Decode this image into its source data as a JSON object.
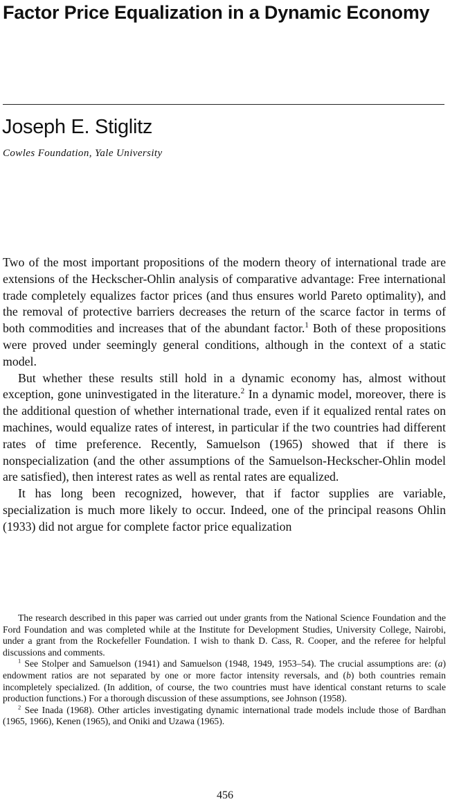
{
  "title": "Factor Price Equalization in a Dynamic Economy",
  "author": "Joseph E. Stiglitz",
  "affiliation": "Cowles Foundation, Yale University",
  "body": {
    "p1_a": "Two of the most important propositions of the modern theory of international trade are extensions of the Heckscher-Ohlin analysis of comparative advantage: Free international trade completely equalizes factor prices (and thus ensures world Pareto optimality), and the removal of protective barriers decreases the return of the scarce factor in terms of both commodities and increases that of the abundant factor.",
    "p1_fn": "1",
    "p1_b": " Both of these propositions were proved under seemingly general conditions, although in the context of a static model.",
    "p2_a": "But whether these results still hold in a dynamic economy has, almost without exception, gone uninvestigated in the literature.",
    "p2_fn": "2",
    "p2_b": " In a dynamic model, moreover, there is the additional question of whether international trade, even if it equalized rental rates on machines, would equalize rates of interest, in particular if the two countries had different rates of time preference. Recently, Samuelson (1965) showed that if there is nonspecialization (and the other assumptions of the Samuelson-Heckscher-Ohlin model are satisfied), then interest rates as well as rental rates are equalized.",
    "p3": "It has long been recognized, however, that if factor supplies are variable, specialization is much more likely to occur. Indeed, one of the principal reasons Ohlin (1933) did not argue for complete factor price equalization"
  },
  "footnotes": {
    "acknowledgment": "The research described in this paper was carried out under grants from the National Science Foundation and the Ford Foundation and was completed while at the Institute for Development Studies, University College, Nairobi, under a grant from the Rockefeller Foundation. I wish to thank D. Cass, R. Cooper, and the referee for helpful discussions and comments.",
    "fn1_mark": "1",
    "fn1_a": " See Stolper and Samuelson (1941) and Samuelson (1948, 1949, 1953–54). The crucial assumptions are: (",
    "fn1_i1": "a",
    "fn1_b": ") endowment ratios are not separated by one or more factor intensity reversals, and (",
    "fn1_i2": "b",
    "fn1_c": ") both countries remain incompletely specialized. (In addition, of course, the two countries must have identical constant returns to scale production functions.) For a thorough discussion of these assumptions, see Johnson (1958).",
    "fn2_mark": "2",
    "fn2_text": " See Inada (1968). Other articles investigating dynamic international trade models include those of Bardhan (1965, 1966), Kenen (1965), and Oniki and Uzawa (1965)."
  },
  "page_number": "456"
}
